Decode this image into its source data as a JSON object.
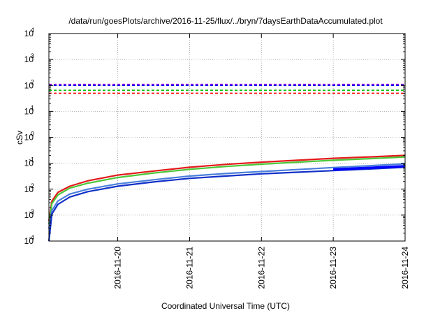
{
  "chart_data": {
    "type": "line",
    "title": "/data/run/goesPlots/archive/2016-11-25/flux/../bryn/7daysEarthDataAccumulated.plot",
    "xlabel": "Coordinated Universal Time (UTC)",
    "ylabel": "cSv",
    "y_scale": "log",
    "ylim": [
      0.0001,
      10000
    ],
    "y_ticks": [
      {
        "value": 0.0001,
        "base": "10",
        "exp": "-4"
      },
      {
        "value": 0.001,
        "base": "10",
        "exp": "-3"
      },
      {
        "value": 0.01,
        "base": "10",
        "exp": "-2"
      },
      {
        "value": 0.1,
        "base": "10",
        "exp": "-1"
      },
      {
        "value": 1,
        "base": "10",
        "exp": "0"
      },
      {
        "value": 10,
        "base": "10",
        "exp": "1"
      },
      {
        "value": 100,
        "base": "10",
        "exp": "2"
      },
      {
        "value": 1000,
        "base": "10",
        "exp": "3"
      },
      {
        "value": 10000,
        "base": "10",
        "exp": "4"
      }
    ],
    "xlim": [
      "2016-11-19T01:00",
      "2016-11-24T00:00"
    ],
    "x_ticks": [
      "2016-11-20",
      "2016-11-21",
      "2016-11-22",
      "2016-11-23",
      "2016-11-24"
    ],
    "grid": "dotted",
    "legend": "none",
    "thresholds": [
      {
        "value": 110,
        "color": "#9400d3"
      },
      {
        "value": 100,
        "color": "#0000ff"
      },
      {
        "value": 65,
        "color": "#00c000"
      },
      {
        "value": 50,
        "color": "#ff0000"
      }
    ],
    "series": [
      {
        "color": "#e41a1c",
        "points": [
          [
            "2016-11-19T01:00",
            0.0006
          ],
          [
            "2016-11-19T02:00",
            0.0035
          ],
          [
            "2016-11-19T04:00",
            0.0075
          ],
          [
            "2016-11-19T08:00",
            0.013
          ],
          [
            "2016-11-19T14:00",
            0.021
          ],
          [
            "2016-11-20T00:00",
            0.035
          ],
          [
            "2016-11-20T12:00",
            0.05
          ],
          [
            "2016-11-21T00:00",
            0.07
          ],
          [
            "2016-11-21T12:00",
            0.09
          ],
          [
            "2016-11-22T00:00",
            0.11
          ],
          [
            "2016-11-22T12:00",
            0.13
          ],
          [
            "2016-11-23T00:00",
            0.155
          ],
          [
            "2016-11-23T12:00",
            0.175
          ],
          [
            "2016-11-24T00:00",
            0.2
          ]
        ]
      },
      {
        "color": "#4cc73a",
        "points": [
          [
            "2016-11-19T01:00",
            0.00045
          ],
          [
            "2016-11-19T02:00",
            0.0028
          ],
          [
            "2016-11-19T04:00",
            0.006
          ],
          [
            "2016-11-19T08:00",
            0.011
          ],
          [
            "2016-11-19T14:00",
            0.017
          ],
          [
            "2016-11-20T00:00",
            0.028
          ],
          [
            "2016-11-20T12:00",
            0.042
          ],
          [
            "2016-11-21T00:00",
            0.058
          ],
          [
            "2016-11-21T12:00",
            0.075
          ],
          [
            "2016-11-22T00:00",
            0.092
          ],
          [
            "2016-11-22T12:00",
            0.11
          ],
          [
            "2016-11-23T00:00",
            0.13
          ],
          [
            "2016-11-23T12:00",
            0.15
          ],
          [
            "2016-11-24T00:00",
            0.175
          ]
        ]
      },
      {
        "color": "#4a7fdb",
        "points": [
          [
            "2016-11-19T01:00",
            0.0003
          ],
          [
            "2016-11-19T02:00",
            0.0015
          ],
          [
            "2016-11-19T04:00",
            0.0035
          ],
          [
            "2016-11-19T08:00",
            0.0065
          ],
          [
            "2016-11-19T14:00",
            0.01
          ],
          [
            "2016-11-20T00:00",
            0.016
          ],
          [
            "2016-11-20T12:00",
            0.023
          ],
          [
            "2016-11-21T00:00",
            0.032
          ],
          [
            "2016-11-21T12:00",
            0.04
          ],
          [
            "2016-11-22T00:00",
            0.048
          ],
          [
            "2016-11-22T12:00",
            0.057
          ],
          [
            "2016-11-23T00:00",
            0.068
          ],
          [
            "2016-11-23T12:00",
            0.08
          ],
          [
            "2016-11-24T00:00",
            0.095
          ]
        ]
      },
      {
        "color": "#1030c8",
        "points": [
          [
            "2016-11-19T01:00",
            0.0001
          ],
          [
            "2016-11-19T02:00",
            0.0011
          ],
          [
            "2016-11-19T04:00",
            0.0026
          ],
          [
            "2016-11-19T08:00",
            0.005
          ],
          [
            "2016-11-19T14:00",
            0.008
          ],
          [
            "2016-11-20T00:00",
            0.013
          ],
          [
            "2016-11-20T12:00",
            0.019
          ],
          [
            "2016-11-21T00:00",
            0.026
          ],
          [
            "2016-11-21T12:00",
            0.032
          ],
          [
            "2016-11-22T00:00",
            0.039
          ],
          [
            "2016-11-22T12:00",
            0.045
          ],
          [
            "2016-11-23T00:00",
            0.052
          ],
          [
            "2016-11-23T12:00",
            0.06
          ],
          [
            "2016-11-24T00:00",
            0.07
          ]
        ]
      },
      {
        "color": "#0000ff",
        "points": [
          [
            "2016-11-23T00:00",
            0.055
          ],
          [
            "2016-11-23T12:00",
            0.064
          ],
          [
            "2016-11-24T00:00",
            0.075
          ]
        ]
      },
      {
        "color": "#0000ff",
        "points": [
          [
            "2016-11-23T00:00",
            0.06
          ],
          [
            "2016-11-23T12:00",
            0.069
          ],
          [
            "2016-11-24T00:00",
            0.08
          ]
        ]
      }
    ]
  }
}
